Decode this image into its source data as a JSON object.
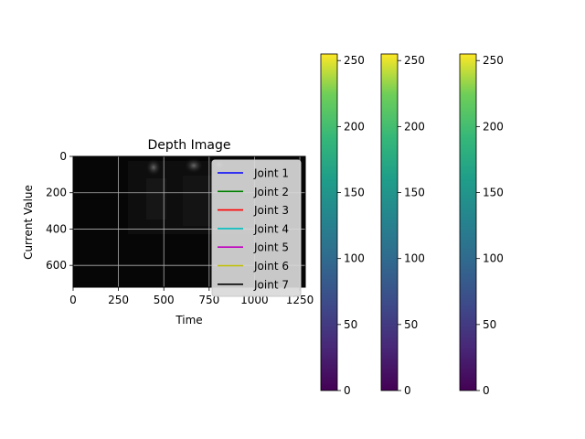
{
  "chart_data": [
    {
      "type": "heatmap",
      "title": "Depth Image",
      "xlabel": "Time",
      "ylabel": "Current Value",
      "xlim": [
        0,
        1280
      ],
      "ylim": [
        720,
        0
      ],
      "x_ticks": [
        0,
        250,
        500,
        750,
        1000,
        1250
      ],
      "y_ticks": [
        0,
        200,
        400,
        600
      ],
      "grid": true,
      "legend_position": "right",
      "series": [
        {
          "name": "Joint 1",
          "color": "#0000ff",
          "values": []
        },
        {
          "name": "Joint 2",
          "color": "#008000",
          "values": []
        },
        {
          "name": "Joint 3",
          "color": "#ff0000",
          "values": []
        },
        {
          "name": "Joint 4",
          "color": "#00bfbf",
          "values": []
        },
        {
          "name": "Joint 5",
          "color": "#bf00bf",
          "values": []
        },
        {
          "name": "Joint 6",
          "color": "#bfbf00",
          "values": []
        },
        {
          "name": "Joint 7",
          "color": "#000000",
          "values": []
        }
      ]
    },
    {
      "type": "colorbar",
      "colormap": "viridis",
      "range": [
        0,
        255
      ],
      "ticks": [
        0,
        50,
        100,
        150,
        200,
        250
      ],
      "count": 3
    }
  ],
  "colors": {
    "image_background": "#060606",
    "legend_background": "#d9d9d9",
    "grid": "#b0b0b0"
  }
}
